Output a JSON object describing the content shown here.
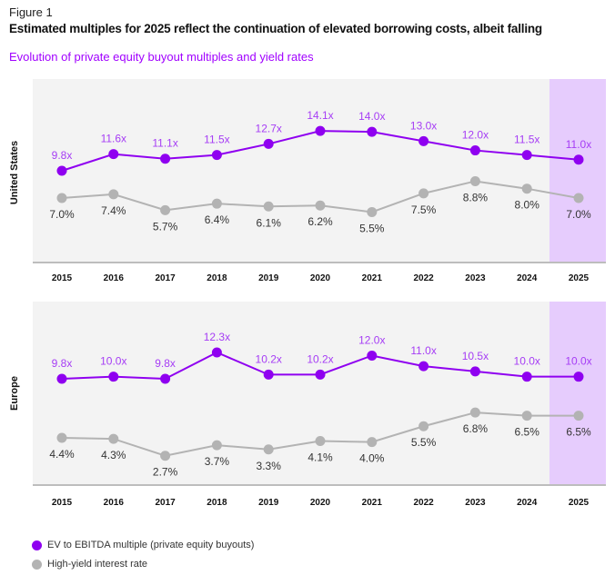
{
  "figure_label": "Figure 1",
  "title": "Estimated multiples for 2025 reflect the continuation of elevated borrowing costs, albeit falling",
  "subtitle": "Evolution of private equity buyout multiples and yield rates",
  "colors": {
    "multiple": "#a100ff",
    "multiple_label": "#a63df5",
    "yield": "#b3b3b3",
    "panel_bg": "#f3f3f3",
    "highlight_bg": "#e6ccfd"
  },
  "legend": [
    {
      "label": "EV to EBITDA multiple (private equity buyouts)",
      "color": "#8f00f0"
    },
    {
      "label": "High-yield interest rate",
      "color": "#b3b3b3"
    }
  ],
  "chart_data": [
    {
      "type": "line",
      "ylabel": "United States",
      "categories": [
        "2015",
        "2016",
        "2017",
        "2018",
        "2019",
        "2020",
        "2021",
        "2022",
        "2023",
        "2024",
        "2025"
      ],
      "highlight_category": "2025",
      "series": [
        {
          "name": "EV to EBITDA multiple (private equity buyouts)",
          "values": [
            9.8,
            11.6,
            11.1,
            11.5,
            12.7,
            14.1,
            14.0,
            13.0,
            12.0,
            11.5,
            11.0
          ],
          "labels": [
            "9.8x",
            "11.6x",
            "11.1x",
            "11.5x",
            "12.7x",
            "14.1x",
            "14.0x",
            "13.0x",
            "12.0x",
            "11.5x",
            "11.0x"
          ]
        },
        {
          "name": "High-yield interest rate",
          "values": [
            7.0,
            7.4,
            5.7,
            6.4,
            6.1,
            6.2,
            5.5,
            7.5,
            8.8,
            8.0,
            7.0
          ],
          "labels": [
            "7.0%",
            "7.4%",
            "5.7%",
            "6.4%",
            "6.1%",
            "6.2%",
            "5.5%",
            "7.5%",
            "8.8%",
            "8.0%",
            "7.0%"
          ]
        }
      ]
    },
    {
      "type": "line",
      "ylabel": "Europe",
      "categories": [
        "2015",
        "2016",
        "2017",
        "2018",
        "2019",
        "2020",
        "2021",
        "2022",
        "2023",
        "2024",
        "2025"
      ],
      "highlight_category": "2025",
      "series": [
        {
          "name": "EV to EBITDA multiple (private equity buyouts)",
          "values": [
            9.8,
            10.0,
            9.8,
            12.3,
            10.2,
            10.2,
            12.0,
            11.0,
            10.5,
            10.0,
            10.0
          ],
          "labels": [
            "9.8x",
            "10.0x",
            "9.8x",
            "12.3x",
            "10.2x",
            "10.2x",
            "12.0x",
            "11.0x",
            "10.5x",
            "10.0x",
            "10.0x"
          ]
        },
        {
          "name": "High-yield interest rate",
          "values": [
            4.4,
            4.3,
            2.7,
            3.7,
            3.3,
            4.1,
            4.0,
            5.5,
            6.8,
            6.5,
            6.5
          ],
          "labels": [
            "4.4%",
            "4.3%",
            "2.7%",
            "3.7%",
            "3.3%",
            "4.1%",
            "4.0%",
            "5.5%",
            "6.8%",
            "6.5%",
            "6.5%"
          ]
        }
      ]
    }
  ]
}
